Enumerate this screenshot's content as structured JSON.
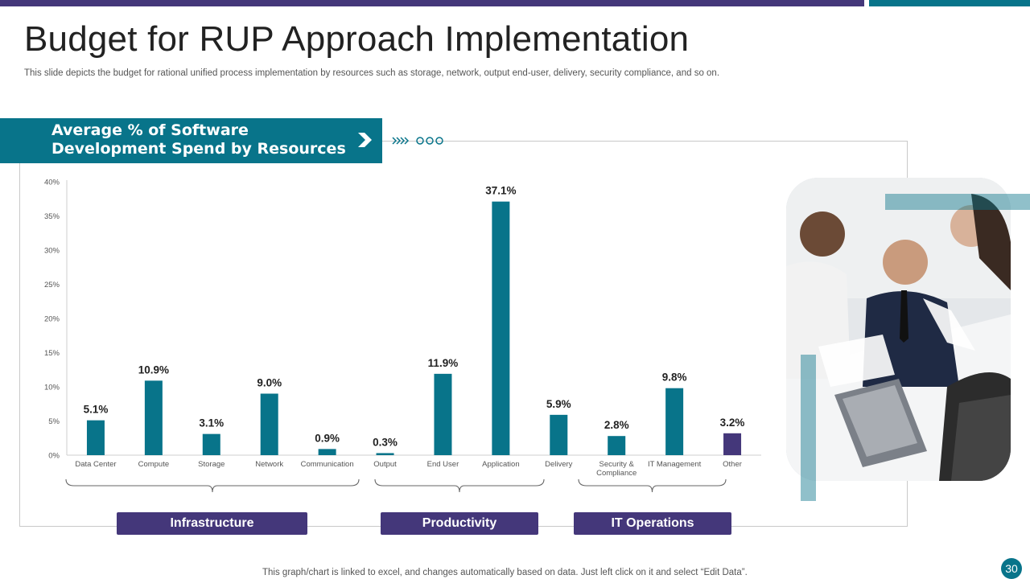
{
  "slide": {
    "title": "Budget for RUP Approach Implementation",
    "subtitle": "This slide depicts the budget for rational unified process implementation by resources such as storage, network, output end-user, delivery, security compliance, and so on.",
    "footnote": "This graph/chart is linked to excel, and changes automatically based on data. Just left click on it and select “Edit Data”.",
    "page_number": "30",
    "colors": {
      "purple": "#44377a",
      "teal": "#08748a"
    }
  },
  "banner": {
    "text": "Average % of Software Development Spend by Resources",
    "arrow_icon": "chevron-right-icon"
  },
  "groups": [
    {
      "label": "Infrastructure"
    },
    {
      "label": "Productivity"
    },
    {
      "label": "IT Operations"
    }
  ],
  "photo": {
    "alt": "team-meeting-photo"
  },
  "chart_data": {
    "type": "bar",
    "title": "Average % of Software Development Spend by Resources",
    "xlabel": "",
    "ylabel": "",
    "ylim": [
      0,
      40
    ],
    "yticks": [
      "0%",
      "5%",
      "10%",
      "15%",
      "20%",
      "25%",
      "30%",
      "35%",
      "40%"
    ],
    "grid": false,
    "categories": [
      "Data Center",
      "Compute",
      "Storage",
      "Network",
      "Communication",
      "Output",
      "End User",
      "Application",
      "Delivery",
      "Security & Compliance",
      "IT Management",
      "Other"
    ],
    "values": [
      5.1,
      10.9,
      3.1,
      9.0,
      0.9,
      0.3,
      11.9,
      37.1,
      5.9,
      2.8,
      9.8,
      3.2
    ],
    "value_labels": [
      "5.1%",
      "10.9%",
      "3.1%",
      "9.0%",
      "0.9%",
      "0.3%",
      "11.9%",
      "37.1%",
      "5.9%",
      "2.8%",
      "9.8%",
      "3.2%"
    ],
    "bar_colors": [
      "#08748a",
      "#08748a",
      "#08748a",
      "#08748a",
      "#08748a",
      "#08748a",
      "#08748a",
      "#08748a",
      "#08748a",
      "#08748a",
      "#08748a",
      "#44377a"
    ],
    "groups": [
      {
        "name": "Infrastructure",
        "categories": [
          "Data Center",
          "Compute",
          "Storage",
          "Network",
          "Communication"
        ]
      },
      {
        "name": "Productivity",
        "categories": [
          "Output",
          "End User",
          "Application"
        ]
      },
      {
        "name": "IT Operations",
        "categories": [
          "Delivery",
          "Security & Compliance",
          "IT Management"
        ]
      }
    ]
  }
}
